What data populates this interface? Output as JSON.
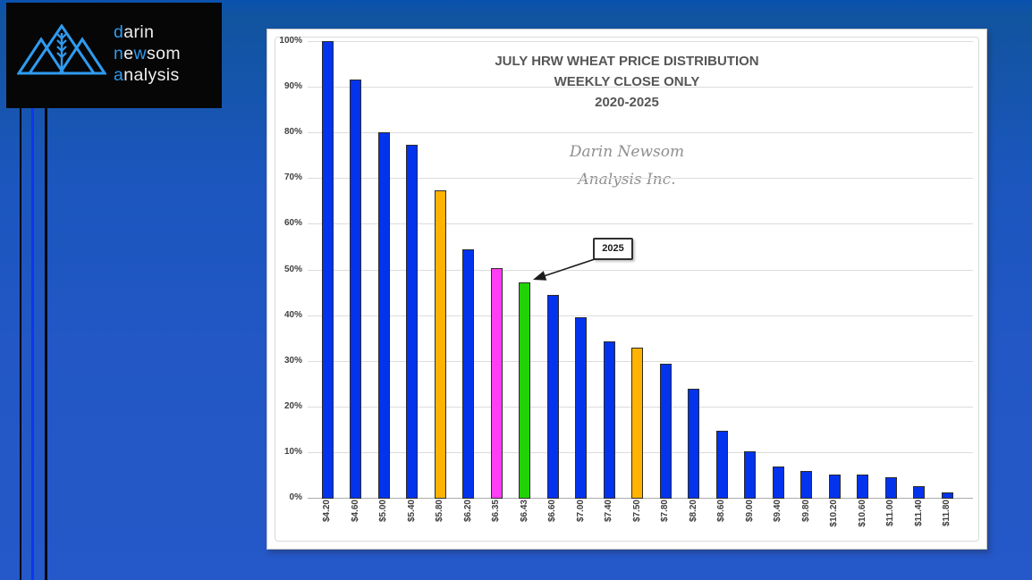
{
  "logo": {
    "w1a": "d",
    "w1b": "arin",
    "w2a": "n",
    "w2b": "e",
    "w2c": "w",
    "w2d": "som",
    "w3a": "a",
    "w3b": "nalysis",
    "accent_color": "#2e9bf0"
  },
  "chart_data": {
    "type": "bar",
    "title": "JULY HRW WHEAT PRICE DISTRIBUTION",
    "subtitle": "WEEKLY CLOSE ONLY",
    "period": "2020-2025",
    "watermark_line1": "Darin Newsom",
    "watermark_line2": "Analysis Inc.",
    "annotation": {
      "label": "2025",
      "points_to": "$6.43"
    },
    "xlabel": "",
    "ylabel": "",
    "ylim": [
      0,
      100
    ],
    "ytick_step": 10,
    "ytick_suffix": "%",
    "grid": true,
    "legend": "none",
    "categories": [
      "$4.20",
      "$4.60",
      "$5.00",
      "$5.40",
      "$5.80",
      "$6.20",
      "$6.35",
      "$6.43",
      "$6.60",
      "$7.00",
      "$7.40",
      "$7.50",
      "$7.80",
      "$8.20",
      "$8.60",
      "$9.00",
      "$9.40",
      "$9.80",
      "$10.20",
      "$10.60",
      "$11.00",
      "$11.40",
      "$11.80"
    ],
    "values": [
      100,
      91.5,
      80,
      77.3,
      67.4,
      54.4,
      50.2,
      47.2,
      44.5,
      39.5,
      34.3,
      32.8,
      29.3,
      23.8,
      14.7,
      10.2,
      6.8,
      5.8,
      5.1,
      5.1,
      4.5,
      2.6,
      1.1
    ],
    "colors": [
      "blue",
      "blue",
      "blue",
      "blue",
      "orange",
      "blue",
      "magenta",
      "green",
      "blue",
      "blue",
      "blue",
      "orange",
      "blue",
      "blue",
      "blue",
      "blue",
      "blue",
      "blue",
      "blue",
      "blue",
      "blue",
      "blue",
      "blue"
    ],
    "palette": {
      "blue": "#0433ee",
      "orange": "#ffb300",
      "magenta": "#ff3df2",
      "green": "#21d306"
    }
  }
}
